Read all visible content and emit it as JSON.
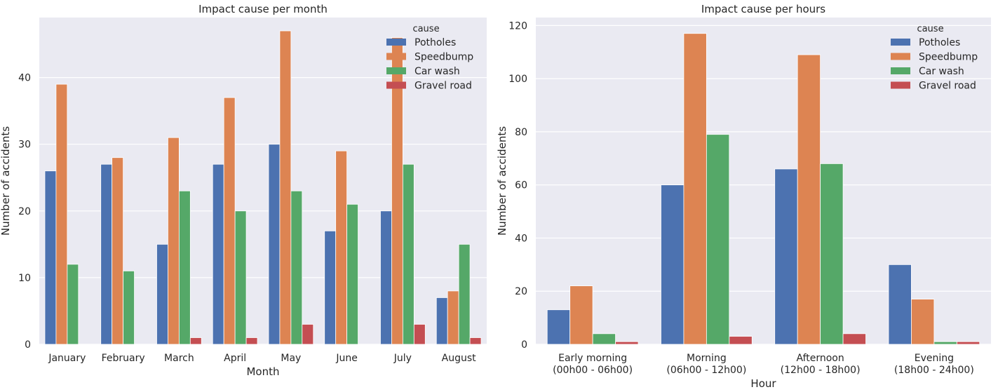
{
  "colors": {
    "Potholes": "#4c72b0",
    "Speedbump": "#dd8452",
    "Car wash": "#55a868",
    "Gravel road": "#c44e52"
  },
  "chart_data": [
    {
      "type": "bar",
      "title": "Impact cause per month",
      "xlabel": "Month",
      "ylabel": "Number of accidents",
      "categories": [
        "January",
        "February",
        "March",
        "April",
        "May",
        "June",
        "July",
        "August"
      ],
      "legend_title": "cause",
      "legend_position": "top-right",
      "grid": true,
      "ylim": [
        0,
        49
      ],
      "yticks": [
        0,
        10,
        20,
        30,
        40
      ],
      "series": [
        {
          "name": "Potholes",
          "values": [
            26,
            27,
            15,
            27,
            30,
            17,
            20,
            7
          ]
        },
        {
          "name": "Speedbump",
          "values": [
            39,
            28,
            31,
            37,
            47,
            29,
            46,
            8
          ]
        },
        {
          "name": "Car wash",
          "values": [
            12,
            11,
            23,
            20,
            23,
            21,
            27,
            15
          ]
        },
        {
          "name": "Gravel road",
          "values": [
            0,
            0,
            1,
            1,
            3,
            0,
            3,
            1
          ]
        }
      ]
    },
    {
      "type": "bar",
      "title": "Impact cause per hours",
      "xlabel": "Hour",
      "ylabel": "Number of accidents",
      "categories": [
        [
          "Early morning",
          "(00h00 - 06h00)"
        ],
        [
          "Morning",
          "(06h00 - 12h00)"
        ],
        [
          "Afternoon",
          "(12h00 - 18h00)"
        ],
        [
          "Evening",
          "(18h00 - 24h00)"
        ]
      ],
      "legend_title": "cause",
      "legend_position": "top-right",
      "grid": true,
      "ylim": [
        0,
        123
      ],
      "yticks": [
        0,
        20,
        40,
        60,
        80,
        100,
        120
      ],
      "series": [
        {
          "name": "Potholes",
          "values": [
            13,
            60,
            66,
            30
          ]
        },
        {
          "name": "Speedbump",
          "values": [
            22,
            117,
            109,
            17
          ]
        },
        {
          "name": "Car wash",
          "values": [
            4,
            79,
            68,
            1
          ]
        },
        {
          "name": "Gravel road",
          "values": [
            1,
            3,
            4,
            1
          ]
        }
      ]
    }
  ]
}
